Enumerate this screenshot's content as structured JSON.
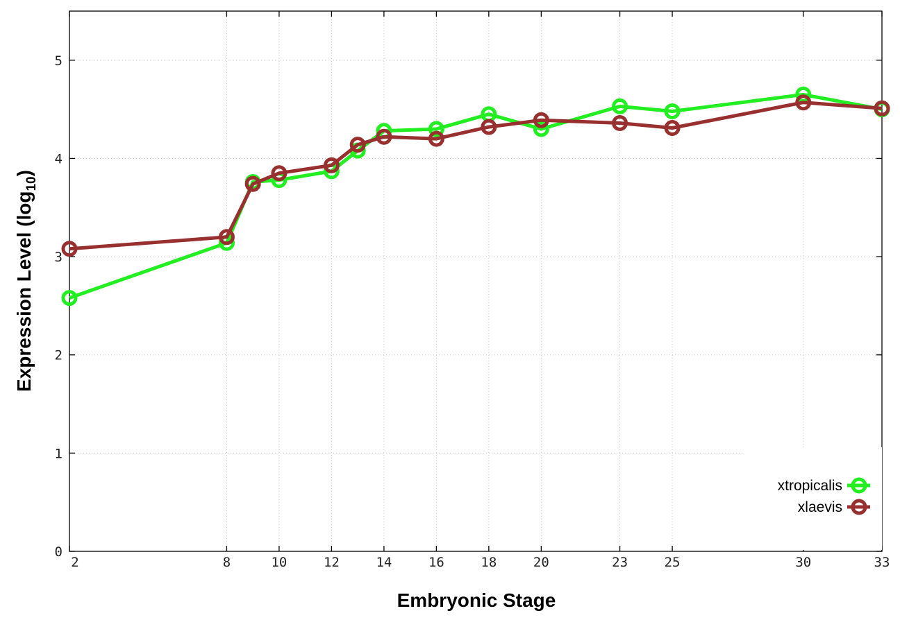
{
  "chart_data": {
    "type": "line",
    "xlabel": "Embryonic Stage",
    "ylabel_main": "Expression Level (log",
    "ylabel_sub": "10",
    "ylabel_close": ")",
    "x_ticks": [
      2,
      8,
      10,
      12,
      14,
      16,
      18,
      20,
      23,
      25,
      30,
      33
    ],
    "y_ticks": [
      0,
      1,
      2,
      3,
      4,
      5
    ],
    "xlim": [
      2,
      33
    ],
    "ylim": [
      0,
      5.5
    ],
    "grid": true,
    "legend_position": "bottom-right",
    "series": [
      {
        "name": "xtropicalis",
        "color": "#22ee22",
        "x": [
          2,
          8,
          9,
          10,
          12,
          13,
          14,
          16,
          18,
          20,
          23,
          25,
          30,
          33
        ],
        "y": [
          2.58,
          3.14,
          3.76,
          3.78,
          3.87,
          4.08,
          4.28,
          4.3,
          4.45,
          4.3,
          4.53,
          4.48,
          4.65,
          4.5
        ]
      },
      {
        "name": "xlaevis",
        "color": "#983030",
        "x": [
          2,
          8,
          9,
          10,
          12,
          13,
          14,
          16,
          18,
          20,
          23,
          25,
          30,
          33
        ],
        "y": [
          3.08,
          3.2,
          3.74,
          3.85,
          3.93,
          4.14,
          4.22,
          4.2,
          4.32,
          4.39,
          4.36,
          4.31,
          4.57,
          4.51
        ]
      }
    ]
  }
}
